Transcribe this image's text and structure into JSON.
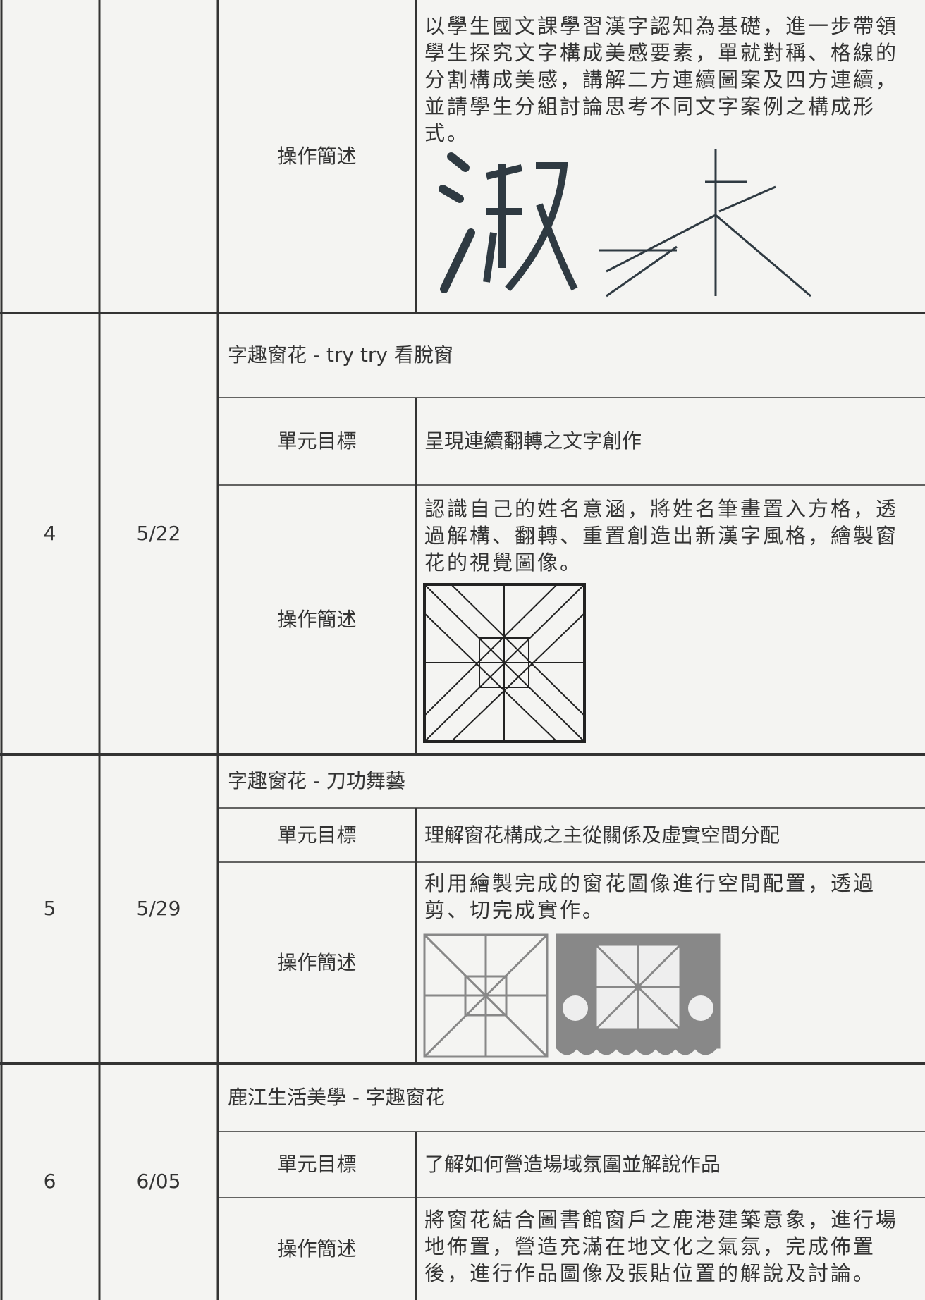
{
  "continuation": {
    "method_label": "操作簡述",
    "method": "以學生國文課學習漢字認知為基礎，進一步帶領學生探究文字構成美感要素，單就對稱、格線的分割構成美感，講解二方連續圖案及四方連續，並請學生分組討論思考不同文字案例之構成形式。"
  },
  "sessions": [
    {
      "number": "4",
      "date": "5/22",
      "title": "字趣窗花 - try try 看脫窗",
      "goal_label": "單元目標",
      "goal": "呈現連續翻轉之文字創作",
      "method_label": "操作簡述",
      "method": "認識自己的姓名意涵，將姓名筆畫置入方格，透過解構、翻轉、重置創造出新漢字風格，繪製窗花的視覺圖像。"
    },
    {
      "number": "5",
      "date": "5/29",
      "title": "字趣窗花 - 刀功舞藝",
      "goal_label": "單元目標",
      "goal": "理解窗花構成之主從關係及虛實空間分配",
      "method_label": "操作簡述",
      "method": "利用繪製完成的窗花圖像進行空間配置，透過剪、切完成實作。"
    },
    {
      "number": "6",
      "date": "6/05",
      "title": "鹿江生活美學 - 字趣窗花",
      "goal_label": "單元目標",
      "goal": "了解如何營造場域氛圍並解說作品",
      "method_label": "操作簡述",
      "method": "將窗花結合圖書館窗戶之鹿港建築意象，進行場地佈置，營造充滿在地文化之氣氛，完成佈置後，進行作品圖像及張貼位置的解說及討論。"
    }
  ]
}
